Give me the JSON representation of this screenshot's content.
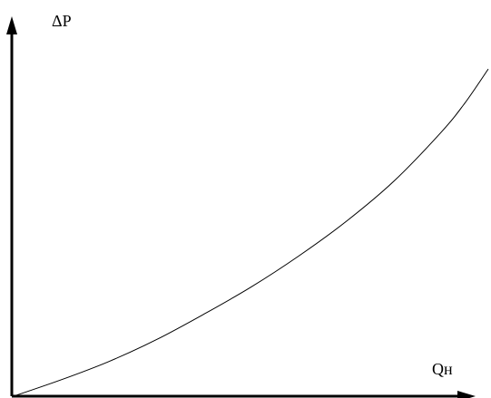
{
  "chart_data": {
    "type": "line",
    "title": "",
    "xlabel": "Qн",
    "ylabel": "ΔP",
    "grid": false,
    "ticks": false,
    "xlim": [
      0,
      1
    ],
    "ylim": [
      0,
      1
    ],
    "series": [
      {
        "x": [
          0,
          0.1,
          0.2,
          0.3,
          0.4,
          0.5,
          0.6,
          0.7,
          0.8,
          0.9,
          0.95,
          1.0
        ],
        "values": [
          0,
          0.045,
          0.095,
          0.155,
          0.225,
          0.3,
          0.385,
          0.48,
          0.59,
          0.725,
          0.805,
          0.9
        ]
      }
    ]
  },
  "colors": {
    "axis": "#000000",
    "curve": "#000000",
    "background": "#ffffff"
  }
}
